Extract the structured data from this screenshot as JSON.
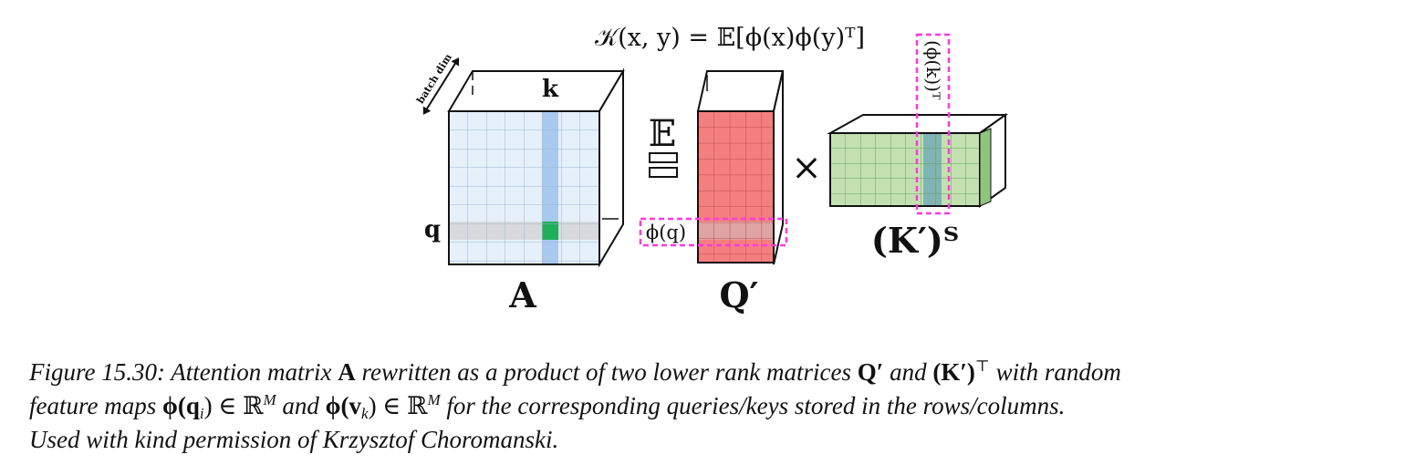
{
  "formula": "𝒦(x, y) = 𝔼[ϕ(x)ϕ(y)ᵀ]",
  "labels": {
    "batch_dim": "batch dim",
    "k": "k",
    "q": "q",
    "A": "A",
    "Q_prime": "Q′",
    "K_prime_T": "(K′)ᵀ",
    "phi_q": "ϕ(q)",
    "phi_k_T": "(ϕ(k))ᵀ",
    "expectation": "𝔼",
    "equals": "=",
    "times": "×"
  },
  "colors": {
    "A_face": "#e6f0fb",
    "A_column": "#a9c9ef",
    "A_row": "#d7d9dc",
    "A_cell": "#1fae5a",
    "Q_face": "#f47f7f",
    "K_face": "#c4e0b1",
    "K_column": "#7fb3b6",
    "highlight_dash": "#ff38e0"
  },
  "caption": {
    "fig_label": "Figure 15.30:",
    "t1": "Attention matrix",
    "A": "A",
    "t2": "rewritten as a product of two lower rank matrices",
    "Q": "Q′",
    "and1": "and",
    "KT": "(K′)",
    "T": "⊤",
    "t3": "with random",
    "l2a": "feature maps",
    "phi_q": "ϕ(q",
    "i": "i",
    "inRM1": ") ∈ ℝ",
    "M1": "M",
    "and2": "and",
    "phi_v": "ϕ(v",
    "k": "k",
    "inRM2": ") ∈ ℝ",
    "M2": "M",
    "l2b": "for the corresponding queries/keys stored in the rows/columns.",
    "line3": "Used with kind permission of Krzysztof Choromanski."
  }
}
